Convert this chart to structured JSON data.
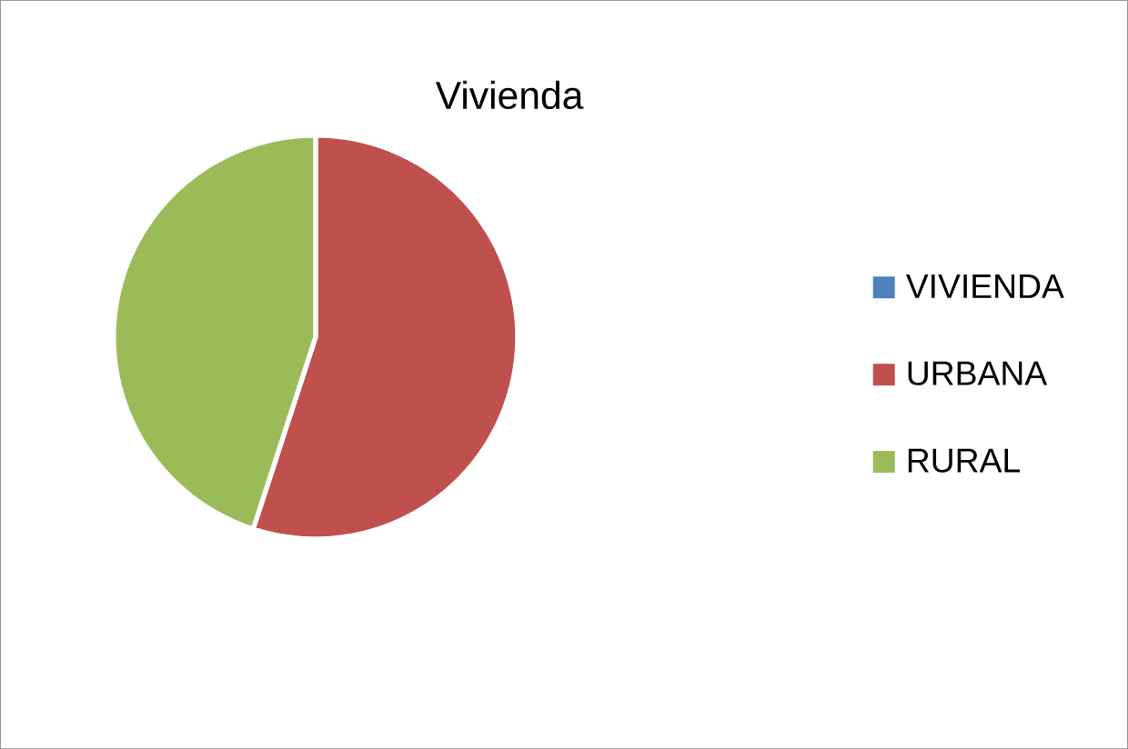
{
  "chart_data": {
    "type": "pie",
    "title": "Vivienda",
    "categories": [
      "VIVIENDA",
      "URBANA",
      "RURAL"
    ],
    "values": [
      0,
      55,
      45
    ],
    "colors": [
      "#4f81bd",
      "#c0504d",
      "#9bbb59"
    ],
    "legend": "right"
  }
}
